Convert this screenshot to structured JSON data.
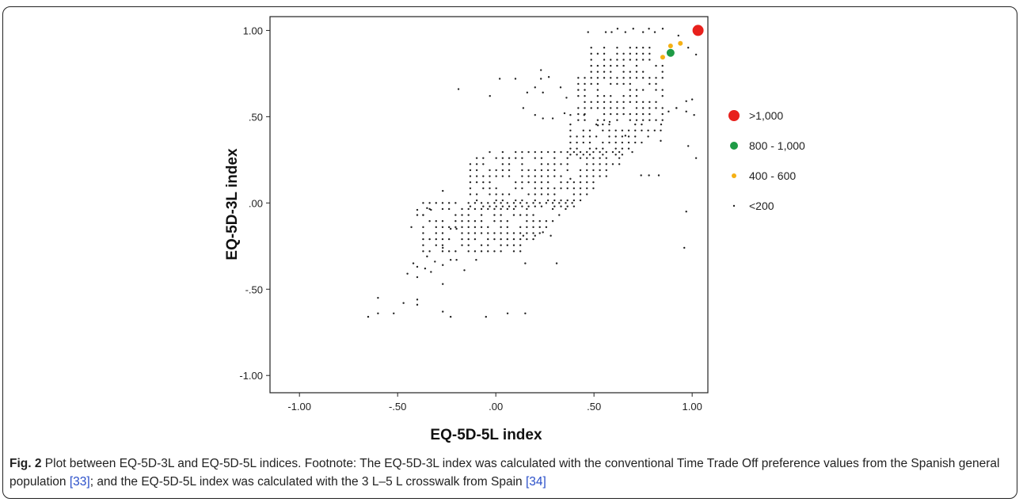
{
  "chart_data": {
    "type": "scatter",
    "xlabel": "EQ-5D-5L index",
    "ylabel": "EQ-5D-3L index",
    "xlim": [
      -1.15,
      1.08
    ],
    "ylim": [
      -1.1,
      1.08
    ],
    "x_ticks": [
      -1.0,
      -0.5,
      0.0,
      0.5,
      1.0
    ],
    "x_tick_labels": [
      "-1.00",
      "-.50",
      ".00",
      ".50",
      "1.00"
    ],
    "y_ticks": [
      -1.0,
      -0.5,
      0.0,
      0.5,
      1.0
    ],
    "y_tick_labels": [
      "-1.00",
      "-.50",
      ".00",
      ".50",
      "1.00"
    ],
    "legend": {
      "placement": "right",
      "entries": [
        {
          "label": ">1,000",
          "color": "#e8201c",
          "size": "large"
        },
        {
          "label": "800 - 1,000",
          "color": "#1e9b45",
          "size": "medium"
        },
        {
          "label": "400 - 600",
          "color": "#f5b014",
          "size": "small"
        },
        {
          "label": "<200",
          "color": "#222222",
          "size": "tiny"
        }
      ]
    },
    "series": [
      {
        "name": ">1,000",
        "color": "#e8201c",
        "points": [
          [
            1.03,
            1.0
          ]
        ]
      },
      {
        "name": "800 - 1,000",
        "color": "#1e9b45",
        "points": [
          [
            0.89,
            0.87
          ]
        ]
      },
      {
        "name": "400 - 600",
        "color": "#f5b014",
        "points": [
          [
            0.85,
            0.845
          ],
          [
            0.89,
            0.91
          ],
          [
            0.94,
            0.925
          ]
        ]
      },
      {
        "name": "<200",
        "color": "#222222",
        "points": [
          [
            -0.65,
            -0.66
          ],
          [
            -0.6,
            -0.64
          ],
          [
            -0.52,
            -0.64
          ],
          [
            -0.6,
            -0.55
          ],
          [
            -0.47,
            -0.58
          ],
          [
            -0.4,
            -0.56
          ],
          [
            -0.4,
            -0.59
          ],
          [
            -0.27,
            -0.63
          ],
          [
            -0.23,
            -0.66
          ],
          [
            -0.05,
            -0.66
          ],
          [
            0.06,
            -0.64
          ],
          [
            0.15,
            -0.64
          ],
          [
            -0.45,
            -0.41
          ],
          [
            -0.42,
            -0.35
          ],
          [
            -0.4,
            -0.43
          ],
          [
            -0.4,
            -0.37
          ],
          [
            -0.36,
            -0.38
          ],
          [
            -0.35,
            -0.31
          ],
          [
            -0.33,
            -0.4
          ],
          [
            -0.31,
            -0.34
          ],
          [
            -0.27,
            -0.47
          ],
          [
            -0.27,
            -0.36
          ],
          [
            -0.23,
            -0.33
          ],
          [
            -0.2,
            -0.33
          ],
          [
            -0.16,
            -0.39
          ],
          [
            -0.1,
            -0.33
          ],
          [
            0.15,
            -0.35
          ],
          [
            0.31,
            -0.35
          ],
          [
            0.14,
            -0.19
          ],
          [
            0.2,
            -0.19
          ],
          [
            0.24,
            -0.17
          ],
          [
            -0.43,
            -0.14
          ],
          [
            -0.4,
            -0.07
          ],
          [
            -0.4,
            -0.04
          ],
          [
            -0.37,
            -0.07
          ],
          [
            -0.35,
            -0.03
          ],
          [
            -0.33,
            -0.04
          ],
          [
            -0.27,
            0.07
          ],
          [
            -0.23,
            -0.15
          ],
          [
            -0.2,
            -0.15
          ],
          [
            -0.27,
            -0.26
          ],
          [
            0.96,
            -0.26
          ],
          [
            0.97,
            -0.05
          ],
          [
            1.02,
            0.26
          ],
          [
            0.38,
            0.14
          ],
          [
            0.28,
            -0.19
          ],
          [
            -0.19,
            0.66
          ],
          [
            -0.03,
            0.62
          ],
          [
            0.02,
            0.72
          ],
          [
            0.1,
            0.72
          ],
          [
            0.23,
            0.72
          ],
          [
            0.14,
            0.55
          ],
          [
            0.2,
            0.51
          ],
          [
            0.24,
            0.49
          ],
          [
            0.29,
            0.49
          ],
          [
            0.35,
            0.52
          ],
          [
            0.38,
            0.51
          ],
          [
            0.16,
            0.64
          ],
          [
            0.24,
            0.64
          ],
          [
            0.2,
            0.67
          ],
          [
            0.23,
            0.77
          ],
          [
            0.27,
            0.73
          ],
          [
            0.33,
            0.67
          ],
          [
            0.36,
            0.61
          ],
          [
            0.47,
            0.99
          ],
          [
            0.56,
            0.99
          ],
          [
            0.59,
            0.99
          ],
          [
            0.62,
            1.01
          ],
          [
            0.66,
            0.99
          ],
          [
            0.7,
            1.01
          ],
          [
            0.75,
            0.99
          ],
          [
            0.78,
            1.01
          ],
          [
            0.81,
            0.99
          ],
          [
            0.85,
            1.01
          ],
          [
            0.93,
            0.97
          ],
          [
            0.98,
            0.9
          ],
          [
            1.02,
            0.86
          ],
          [
            0.92,
            0.55
          ],
          [
            0.97,
            0.53
          ],
          [
            1.01,
            0.51
          ],
          [
            0.88,
            0.53
          ],
          [
            0.98,
            0.33
          ],
          [
            0.66,
            0.39
          ],
          [
            0.58,
            0.47
          ],
          [
            0.45,
            0.51
          ],
          [
            0.52,
            0.45
          ],
          [
            0.84,
            0.42
          ],
          [
            0.84,
            0.36
          ],
          [
            0.78,
            0.16
          ],
          [
            0.83,
            0.16
          ],
          [
            0.74,
            0.16
          ],
          [
            0.92,
            0.55
          ],
          [
            0.97,
            0.59
          ],
          [
            1.0,
            0.6
          ]
        ],
        "grids": [
          {
            "x0": -0.37,
            "x1": 0.64,
            "y0": -0.28,
            "y1": 0.0,
            "dx": 0.033,
            "dy": 0.035
          },
          {
            "x0": -0.13,
            "x1": 0.8,
            "y0": -0.02,
            "y1": 0.3,
            "dx": 0.033,
            "dy": 0.035
          },
          {
            "x0": 0.38,
            "x1": 0.87,
            "y0": 0.28,
            "y1": 0.48,
            "dx": 0.033,
            "dy": 0.035
          },
          {
            "x0": 0.42,
            "x1": 0.88,
            "y0": 0.48,
            "y1": 0.93,
            "dx": 0.033,
            "dy": 0.035
          }
        ]
      }
    ]
  },
  "caption": {
    "label": "Fig. 2",
    "text_part1": " Plot between EQ-5D-3L and EQ-5D-5L indices. Footnote: The EQ-5D-3L index was calculated with the conventional Time Trade Off preference values from the Spanish general population ",
    "ref1": "[33]",
    "text_part2": "; and the EQ-5D-5L index was calculated with the 3 L–5 L crosswalk from Spain ",
    "ref2": "[34]"
  }
}
